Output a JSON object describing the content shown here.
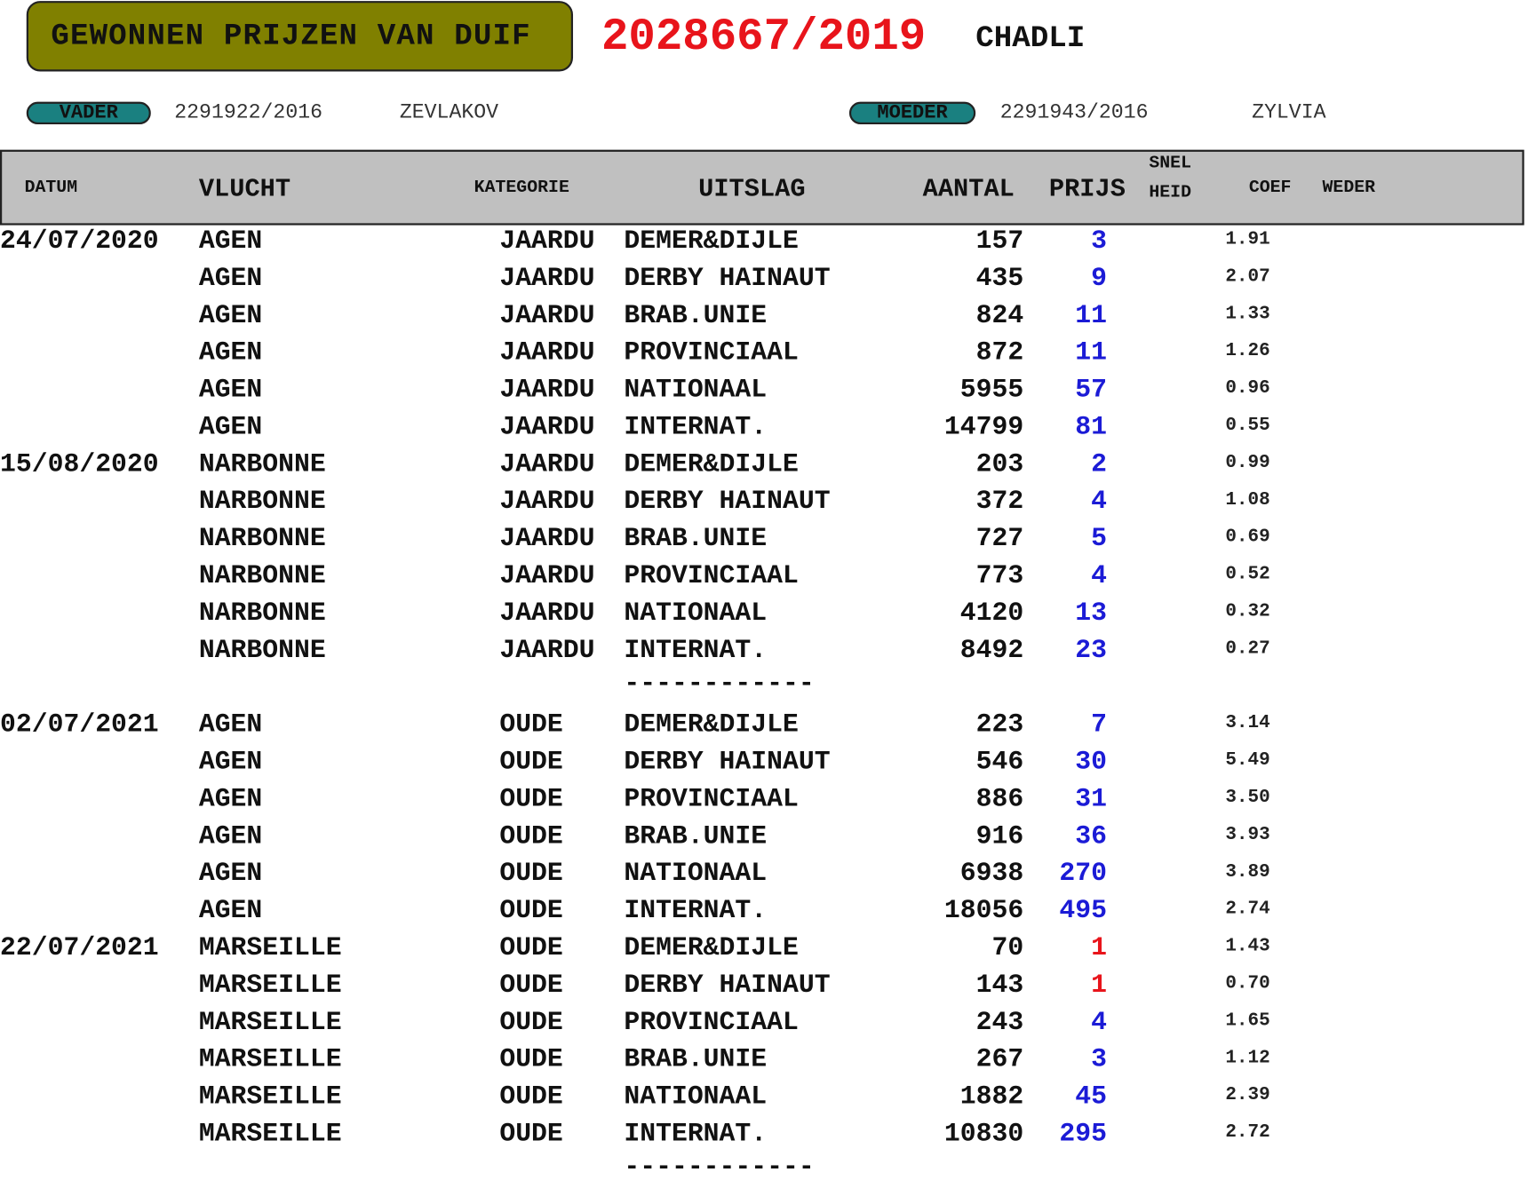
{
  "title": {
    "label": "GEWONNEN PRIJZEN VAN DUIF",
    "ring": "2028667/2019",
    "name": "CHADLI"
  },
  "father": {
    "label": "VADER",
    "ring": "2291922/2016",
    "name": "ZEVLAKOV"
  },
  "mother": {
    "label": "MOEDER",
    "ring": "2291943/2016",
    "name": "ZYLVIA"
  },
  "colors": {
    "title_box": "#808000",
    "ring": "#e8141b",
    "pill": "#1a8080",
    "prize_blue": "#1b1bd6",
    "prize_first": "#e8141b",
    "header_bg": "#c0c0c0"
  },
  "columns": {
    "datum": "DATUM",
    "vlucht": "VLUCHT",
    "kategorie": "KATEGORIE",
    "uitslag": "UITSLAG",
    "aantal": "AANTAL",
    "prijs": "PRIJS",
    "snel": "SNEL",
    "heid": "HEID",
    "coef": "COEF",
    "weder": "WEDER"
  },
  "separator": "------------",
  "groups": [
    {
      "rows": [
        {
          "datum": "24/07/2020",
          "vlucht": "AGEN",
          "kategorie": "JAARDU",
          "uitslag": "DEMER&DIJLE",
          "aantal": "157",
          "prijs": "3",
          "coef": "1.91"
        },
        {
          "datum": "",
          "vlucht": "AGEN",
          "kategorie": "JAARDU",
          "uitslag": "DERBY HAINAUT",
          "aantal": "435",
          "prijs": "9",
          "coef": "2.07"
        },
        {
          "datum": "",
          "vlucht": "AGEN",
          "kategorie": "JAARDU",
          "uitslag": "BRAB.UNIE",
          "aantal": "824",
          "prijs": "11",
          "coef": "1.33"
        },
        {
          "datum": "",
          "vlucht": "AGEN",
          "kategorie": "JAARDU",
          "uitslag": "PROVINCIAAL",
          "aantal": "872",
          "prijs": "11",
          "coef": "1.26"
        },
        {
          "datum": "",
          "vlucht": "AGEN",
          "kategorie": "JAARDU",
          "uitslag": "NATIONAAL",
          "aantal": "5955",
          "prijs": "57",
          "coef": "0.96"
        },
        {
          "datum": "",
          "vlucht": "AGEN",
          "kategorie": "JAARDU",
          "uitslag": "INTERNAT.",
          "aantal": "14799",
          "prijs": "81",
          "coef": "0.55"
        },
        {
          "datum": "15/08/2020",
          "vlucht": "NARBONNE",
          "kategorie": "JAARDU",
          "uitslag": "DEMER&DIJLE",
          "aantal": "203",
          "prijs": "2",
          "coef": "0.99"
        },
        {
          "datum": "",
          "vlucht": "NARBONNE",
          "kategorie": "JAARDU",
          "uitslag": "DERBY HAINAUT",
          "aantal": "372",
          "prijs": "4",
          "coef": "1.08"
        },
        {
          "datum": "",
          "vlucht": "NARBONNE",
          "kategorie": "JAARDU",
          "uitslag": "BRAB.UNIE",
          "aantal": "727",
          "prijs": "5",
          "coef": "0.69"
        },
        {
          "datum": "",
          "vlucht": "NARBONNE",
          "kategorie": "JAARDU",
          "uitslag": "PROVINCIAAL",
          "aantal": "773",
          "prijs": "4",
          "coef": "0.52"
        },
        {
          "datum": "",
          "vlucht": "NARBONNE",
          "kategorie": "JAARDU",
          "uitslag": "NATIONAAL",
          "aantal": "4120",
          "prijs": "13",
          "coef": "0.32"
        },
        {
          "datum": "",
          "vlucht": "NARBONNE",
          "kategorie": "JAARDU",
          "uitslag": "INTERNAT.",
          "aantal": "8492",
          "prijs": "23",
          "coef": "0.27"
        }
      ]
    },
    {
      "rows": [
        {
          "datum": "02/07/2021",
          "vlucht": "AGEN",
          "kategorie": "OUDE",
          "uitslag": "DEMER&DIJLE",
          "aantal": "223",
          "prijs": "7",
          "coef": "3.14"
        },
        {
          "datum": "",
          "vlucht": "AGEN",
          "kategorie": "OUDE",
          "uitslag": "DERBY HAINAUT",
          "aantal": "546",
          "prijs": "30",
          "coef": "5.49"
        },
        {
          "datum": "",
          "vlucht": "AGEN",
          "kategorie": "OUDE",
          "uitslag": "PROVINCIAAL",
          "aantal": "886",
          "prijs": "31",
          "coef": "3.50"
        },
        {
          "datum": "",
          "vlucht": "AGEN",
          "kategorie": "OUDE",
          "uitslag": "BRAB.UNIE",
          "aantal": "916",
          "prijs": "36",
          "coef": "3.93"
        },
        {
          "datum": "",
          "vlucht": "AGEN",
          "kategorie": "OUDE",
          "uitslag": "NATIONAAL",
          "aantal": "6938",
          "prijs": "270",
          "coef": "3.89"
        },
        {
          "datum": "",
          "vlucht": "AGEN",
          "kategorie": "OUDE",
          "uitslag": "INTERNAT.",
          "aantal": "18056",
          "prijs": "495",
          "coef": "2.74"
        },
        {
          "datum": "22/07/2021",
          "vlucht": "MARSEILLE",
          "kategorie": "OUDE",
          "uitslag": "DEMER&DIJLE",
          "aantal": "70",
          "prijs": "1",
          "coef": "1.43"
        },
        {
          "datum": "",
          "vlucht": "MARSEILLE",
          "kategorie": "OUDE",
          "uitslag": "DERBY HAINAUT",
          "aantal": "143",
          "prijs": "1",
          "coef": "0.70"
        },
        {
          "datum": "",
          "vlucht": "MARSEILLE",
          "kategorie": "OUDE",
          "uitslag": "PROVINCIAAL",
          "aantal": "243",
          "prijs": "4",
          "coef": "1.65"
        },
        {
          "datum": "",
          "vlucht": "MARSEILLE",
          "kategorie": "OUDE",
          "uitslag": "BRAB.UNIE",
          "aantal": "267",
          "prijs": "3",
          "coef": "1.12"
        },
        {
          "datum": "",
          "vlucht": "MARSEILLE",
          "kategorie": "OUDE",
          "uitslag": "NATIONAAL",
          "aantal": "1882",
          "prijs": "45",
          "coef": "2.39"
        },
        {
          "datum": "",
          "vlucht": "MARSEILLE",
          "kategorie": "OUDE",
          "uitslag": "INTERNAT.",
          "aantal": "10830",
          "prijs": "295",
          "coef": "2.72"
        }
      ]
    }
  ]
}
